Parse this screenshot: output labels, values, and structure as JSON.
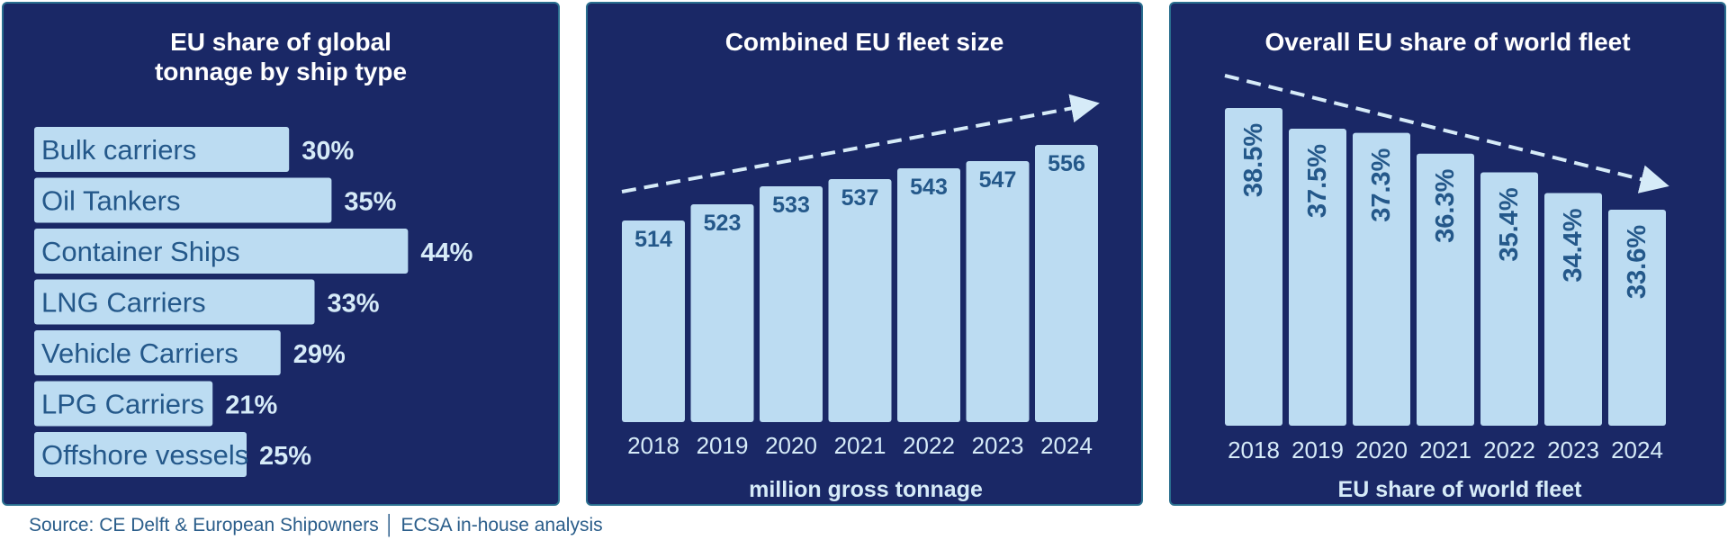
{
  "colors": {
    "panel_bg": "#1a2866",
    "bar": "#bcdcf2",
    "bar_text": "#24588a",
    "light_text": "#d6ebf8",
    "white": "#ffffff"
  },
  "source": "Source: CE Delft & European Shipowners │ ECSA in-house analysis",
  "panels": {
    "ship_types": {
      "title": "EU share of global\ntonnage by ship type"
    },
    "fleet_size": {
      "title": "Combined EU fleet size",
      "axis_label": "million gross tonnage"
    },
    "world_share": {
      "title": "Overall EU share of world fleet",
      "axis_label": "EU share of world fleet"
    }
  },
  "chart_data": [
    {
      "type": "bar",
      "orientation": "horizontal",
      "title": "EU share of global\ntonnage by ship type",
      "categories": [
        "Bulk carriers",
        "Oil Tankers",
        "Container Ships",
        "LNG Carriers",
        "Vehicle Carriers",
        "LPG Carriers",
        "Offshore vessels"
      ],
      "values": [
        30,
        35,
        44,
        33,
        29,
        21,
        25
      ],
      "labels": [
        "30%",
        "35%",
        "44%",
        "33%",
        "29%",
        "21%",
        "25%"
      ],
      "unit": "%"
    },
    {
      "type": "bar",
      "title": "Combined EU fleet size",
      "categories": [
        "2018",
        "2019",
        "2020",
        "2021",
        "2022",
        "2023",
        "2024"
      ],
      "values": [
        514,
        523,
        533,
        537,
        543,
        547,
        556
      ],
      "labels": [
        "514",
        "523",
        "533",
        "537",
        "543",
        "547",
        "556"
      ],
      "xlabel": "million gross tonnage",
      "trend": "up"
    },
    {
      "type": "bar",
      "title": "Overall EU share of world fleet",
      "categories": [
        "2018",
        "2019",
        "2020",
        "2021",
        "2022",
        "2023",
        "2024"
      ],
      "values": [
        38.5,
        37.5,
        37.3,
        36.3,
        35.4,
        34.4,
        33.6
      ],
      "labels": [
        "38.5%",
        "37.5%",
        "37.3%",
        "36.3%",
        "35.4%",
        "34.4%",
        "33.6%"
      ],
      "xlabel": "EU share of world fleet",
      "trend": "down"
    }
  ]
}
